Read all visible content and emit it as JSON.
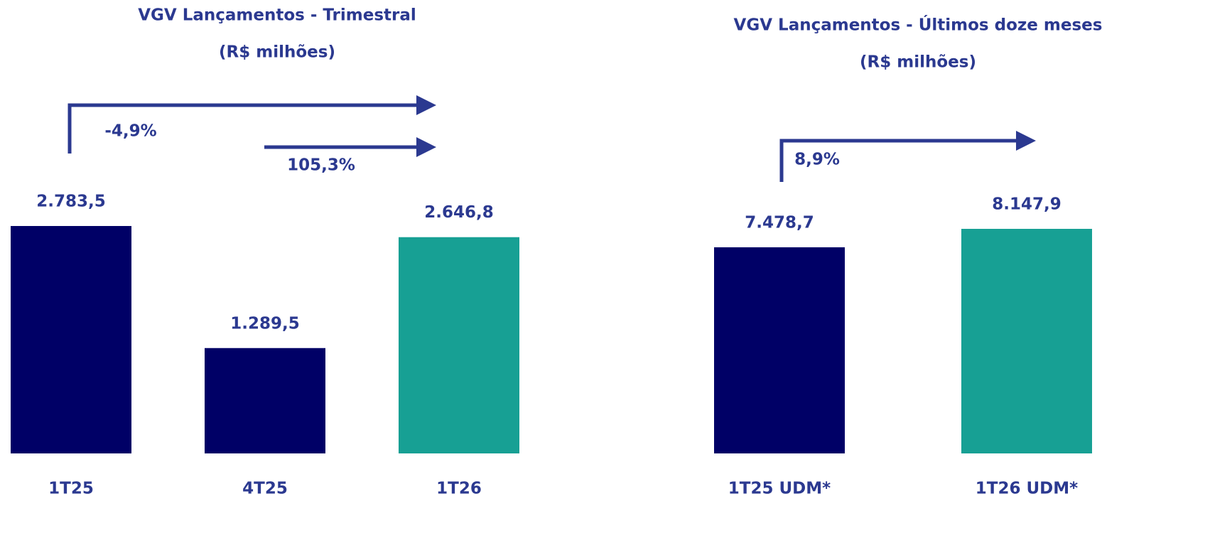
{
  "chart_data": [
    {
      "type": "bar",
      "title": "VGV Lançamentos - Trimestral",
      "subtitle": "(R$ milhões)",
      "categories": [
        "1T25",
        "4T25",
        "1T26"
      ],
      "values": [
        2783.5,
        1289.5,
        2646.8
      ],
      "value_labels": [
        "2.783,5",
        "1.289,5",
        "2.646,8"
      ],
      "colors": [
        "#000066",
        "#000066",
        "#17a094"
      ],
      "annotations": [
        "-4,9%",
        "105,3%"
      ]
    },
    {
      "type": "bar",
      "title": "VGV Lançamentos - Últimos doze meses",
      "subtitle": "(R$ milhões)",
      "categories": [
        "1T25 UDM*",
        "1T26 UDM*"
      ],
      "values": [
        7478.7,
        8147.9
      ],
      "value_labels": [
        "7.478,7",
        "8.147,9"
      ],
      "colors": [
        "#000066",
        "#17a094"
      ],
      "annotations": [
        "8,9%"
      ]
    }
  ]
}
